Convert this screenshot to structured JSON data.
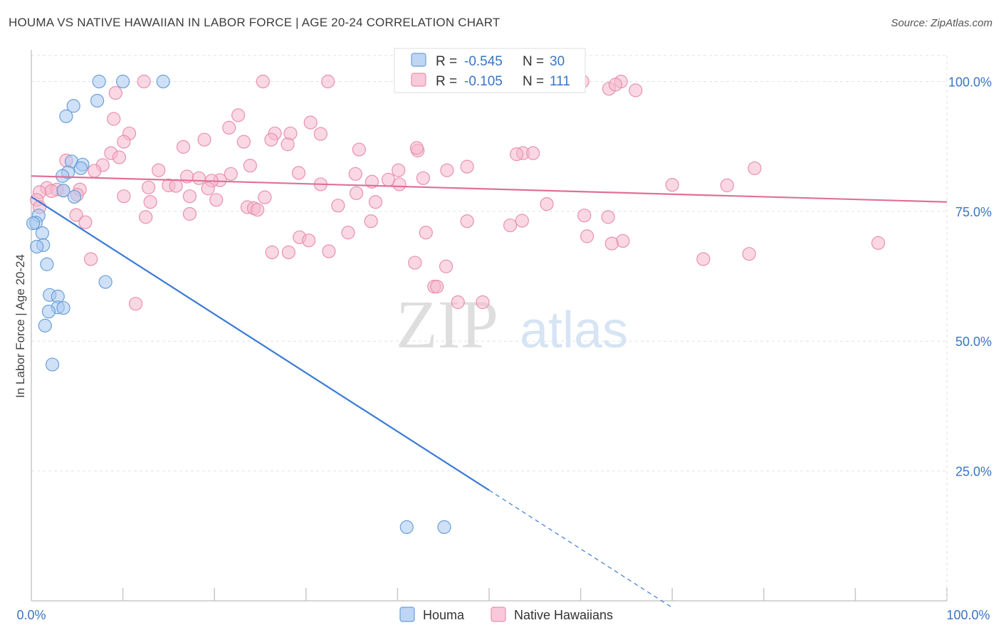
{
  "title": "HOUMA VS NATIVE HAWAIIAN IN LABOR FORCE | AGE 20-24 CORRELATION CHART",
  "source": "Source: ZipAtlas.com",
  "watermark": {
    "zip": "ZIP",
    "atlas": "atlas"
  },
  "colors": {
    "houma_fill": "#a8c8f0",
    "houma_stroke": "#6a9fd8",
    "houma_line": "#3a7ad4",
    "hawaiian_fill": "#f5b8cc",
    "hawaiian_stroke": "#e890ae",
    "hawaiian_line": "#e07098",
    "value_text": "#3a74c4",
    "grid": "#e2e2e2"
  },
  "legend": {
    "rows": [
      {
        "r_label": "R =",
        "r_value": "-0.545",
        "n_label": "N =",
        "n_value": "30"
      },
      {
        "r_label": "R =",
        "r_value": "-0.105",
        "n_label": "N =",
        "n_value": "111"
      }
    ]
  },
  "bottom_legend": [
    "Houma",
    "Native Hawaiians"
  ],
  "chart_data": {
    "type": "scatter",
    "title": "HOUMA VS NATIVE HAWAIIAN IN LABOR FORCE | AGE 20-24 CORRELATION CHART",
    "xlabel": "",
    "ylabel": "In Labor Force | Age 20-24",
    "xlim": [
      0,
      100
    ],
    "ylim": [
      0,
      105
    ],
    "x_tick_labels": [
      "0.0%",
      "100.0%"
    ],
    "y_ticks": [
      25,
      50,
      75,
      100
    ],
    "y_tick_labels": [
      "25.0%",
      "50.0%",
      "75.0%",
      "100.0%"
    ],
    "grid": true,
    "legend_position": "top-center",
    "series": [
      {
        "name": "Houma",
        "r": -0.545,
        "n": 30,
        "trend": {
          "x0": 0,
          "y0": 77.8,
          "x1": 50,
          "y1": 21.3,
          "dash_to_x": 70,
          "dash_to_y": -1.3
        },
        "points": [
          [
            7.4,
            100.0
          ],
          [
            10,
            100.0
          ],
          [
            14.4,
            100.0
          ],
          [
            7.2,
            96.3
          ],
          [
            4.6,
            95.3
          ],
          [
            3.8,
            93.3
          ],
          [
            4.4,
            84.6
          ],
          [
            5.6,
            84.0
          ],
          [
            5.4,
            83.3
          ],
          [
            4.0,
            82.5
          ],
          [
            3.4,
            81.8
          ],
          [
            3.5,
            79.0
          ],
          [
            4.7,
            77.8
          ],
          [
            0.8,
            74.2
          ],
          [
            0.5,
            72.8
          ],
          [
            0.2,
            72.7
          ],
          [
            1.2,
            70.8
          ],
          [
            1.3,
            68.5
          ],
          [
            0.6,
            68.2
          ],
          [
            1.7,
            64.8
          ],
          [
            8.1,
            61.4
          ],
          [
            2.0,
            58.9
          ],
          [
            2.9,
            58.6
          ],
          [
            2.9,
            56.5
          ],
          [
            3.5,
            56.4
          ],
          [
            1.9,
            55.7
          ],
          [
            1.5,
            53.0
          ],
          [
            2.3,
            45.5
          ],
          [
            41.0,
            14.2
          ],
          [
            45.1,
            14.2
          ]
        ]
      },
      {
        "name": "Native Hawaiians",
        "r": -0.105,
        "n": 111,
        "trend": {
          "x0": 0,
          "y0": 81.8,
          "x1": 100,
          "y1": 76.8
        },
        "points": [
          [
            12.3,
            100.0
          ],
          [
            25.3,
            100.0
          ],
          [
            32.4,
            100.0
          ],
          [
            60.2,
            100.0
          ],
          [
            64.4,
            100.0
          ],
          [
            63.1,
            98.6
          ],
          [
            66.0,
            98.3
          ],
          [
            9.2,
            97.8
          ],
          [
            22.6,
            93.5
          ],
          [
            9.0,
            92.8
          ],
          [
            30.5,
            92.1
          ],
          [
            21.6,
            91.1
          ],
          [
            10.7,
            90.0
          ],
          [
            26.6,
            90.0
          ],
          [
            28.3,
            90.0
          ],
          [
            31.6,
            89.9
          ],
          [
            18.9,
            88.8
          ],
          [
            10.1,
            88.4
          ],
          [
            23.2,
            88.4
          ],
          [
            26.2,
            88.8
          ],
          [
            28.0,
            87.9
          ],
          [
            16.6,
            87.4
          ],
          [
            35.8,
            86.9
          ],
          [
            42.2,
            86.7
          ],
          [
            53.7,
            86.2
          ],
          [
            54.8,
            86.2
          ],
          [
            8.7,
            86.2
          ],
          [
            9.6,
            85.4
          ],
          [
            3.8,
            84.8
          ],
          [
            7.8,
            83.9
          ],
          [
            47.6,
            83.6
          ],
          [
            79.0,
            83.3
          ],
          [
            23.9,
            83.8
          ],
          [
            45.4,
            82.9
          ],
          [
            13.9,
            82.9
          ],
          [
            40.1,
            82.9
          ],
          [
            6.9,
            82.8
          ],
          [
            29.2,
            82.4
          ],
          [
            35.4,
            82.2
          ],
          [
            21.8,
            82.2
          ],
          [
            17.0,
            81.7
          ],
          [
            18.3,
            81.4
          ],
          [
            42.8,
            81.4
          ],
          [
            39.0,
            81.1
          ],
          [
            20.6,
            81.0
          ],
          [
            19.7,
            80.9
          ],
          [
            37.2,
            80.7
          ],
          [
            40.2,
            80.2
          ],
          [
            31.6,
            80.2
          ],
          [
            70.0,
            80.1
          ],
          [
            76.0,
            80.0
          ],
          [
            15.0,
            80.0
          ],
          [
            15.8,
            79.9
          ],
          [
            12.8,
            79.6
          ],
          [
            1.7,
            79.5
          ],
          [
            5.3,
            79.2
          ],
          [
            19.3,
            79.4
          ],
          [
            2.8,
            79.2
          ],
          [
            3.5,
            79.0
          ],
          [
            2.2,
            78.9
          ],
          [
            0.9,
            78.7
          ],
          [
            5.0,
            78.2
          ],
          [
            10.1,
            77.9
          ],
          [
            17.3,
            77.9
          ],
          [
            25.5,
            77.7
          ],
          [
            35.5,
            78.5
          ],
          [
            0.6,
            77.2
          ],
          [
            20.2,
            77.2
          ],
          [
            13.0,
            76.8
          ],
          [
            37.6,
            76.8
          ],
          [
            56.3,
            76.4
          ],
          [
            33.5,
            76.1
          ],
          [
            0.9,
            75.8
          ],
          [
            23.6,
            75.8
          ],
          [
            24.3,
            75.6
          ],
          [
            24.7,
            75.3
          ],
          [
            17.3,
            74.5
          ],
          [
            4.9,
            74.3
          ],
          [
            60.4,
            74.2
          ],
          [
            12.5,
            73.9
          ],
          [
            63.0,
            73.9
          ],
          [
            37.1,
            73.1
          ],
          [
            47.6,
            73.1
          ],
          [
            53.6,
            73.2
          ],
          [
            5.9,
            72.9
          ],
          [
            52.3,
            72.3
          ],
          [
            34.6,
            70.9
          ],
          [
            43.1,
            70.9
          ],
          [
            60.7,
            70.2
          ],
          [
            29.3,
            70.0
          ],
          [
            30.3,
            69.4
          ],
          [
            64.6,
            69.3
          ],
          [
            63.4,
            68.8
          ],
          [
            92.5,
            68.9
          ],
          [
            32.5,
            67.3
          ],
          [
            26.3,
            67.1
          ],
          [
            28.1,
            67.1
          ],
          [
            78.4,
            66.8
          ],
          [
            73.4,
            65.8
          ],
          [
            6.5,
            65.8
          ],
          [
            41.9,
            65.1
          ],
          [
            45.3,
            64.4
          ],
          [
            44.0,
            60.5
          ],
          [
            44.3,
            60.5
          ],
          [
            46.6,
            57.5
          ],
          [
            11.4,
            57.2
          ],
          [
            49.3,
            57.5
          ],
          [
            42.1,
            87.2
          ],
          [
            63.8,
            99.4
          ],
          [
            57.0,
            99.6
          ],
          [
            53.0,
            86.0
          ]
        ]
      }
    ]
  }
}
